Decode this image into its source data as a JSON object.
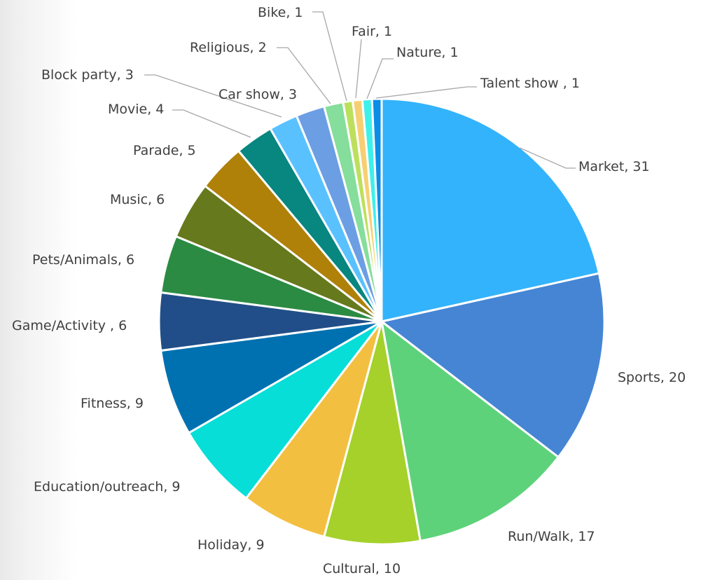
{
  "chart_data": {
    "type": "pie",
    "start_angle_deg": 0,
    "direction": "clockwise",
    "slices": [
      {
        "label": "Market",
        "value": 31,
        "data_label": "Market, 31",
        "color": "#33b3fb"
      },
      {
        "label": "Sports",
        "value": 20,
        "data_label": "Sports, 20",
        "color": "#4585d4"
      },
      {
        "label": "Run/Walk",
        "value": 17,
        "data_label": "Run/Walk, 17",
        "color": "#5ed27a"
      },
      {
        "label": "Cultural",
        "value": 10,
        "data_label": "Cultural, 10",
        "color": "#a5d12a"
      },
      {
        "label": "Holiday",
        "value": 9,
        "data_label": "Holiday, 9",
        "color": "#f3bf40"
      },
      {
        "label": "Education/outreach",
        "value": 9,
        "data_label": "Education/outreach, 9",
        "color": "#07ded8"
      },
      {
        "label": "Fitness",
        "value": 9,
        "data_label": "Fitness, 9",
        "color": "#0071b0"
      },
      {
        "label": "Game/Activity",
        "value": 6,
        "data_label": "Game/Activity , 6",
        "color": "#214e88"
      },
      {
        "label": "Pets/Animals",
        "value": 6,
        "data_label": "Pets/Animals, 6",
        "color": "#2b8b43"
      },
      {
        "label": "Music",
        "value": 6,
        "data_label": "Music, 6",
        "color": "#66791c"
      },
      {
        "label": "Parade",
        "value": 5,
        "data_label": "Parade, 5",
        "color": "#b08109"
      },
      {
        "label": "Movie",
        "value": 4,
        "data_label": "Movie, 4",
        "color": "#088680"
      },
      {
        "label": "Car show",
        "value": 3,
        "data_label": "Car show, 3",
        "color": "#5ac1ff"
      },
      {
        "label": "Block party",
        "value": 3,
        "data_label": "Block party, 3",
        "color": "#6c9ee4"
      },
      {
        "label": "Religious",
        "value": 2,
        "data_label": "Religious, 2",
        "color": "#85de9b"
      },
      {
        "label": "Bike",
        "value": 1,
        "data_label": "Bike, 1",
        "color": "#bce05c"
      },
      {
        "label": "Fair",
        "value": 1,
        "data_label": "Fair, 1",
        "color": "#f7cf72"
      },
      {
        "label": "Nature",
        "value": 1,
        "data_label": "Nature, 1",
        "color": "#3ff0ea"
      },
      {
        "label": "Talent show",
        "value": 1,
        "data_label": "Talent show , 1",
        "color": "#0b8de6"
      }
    ]
  }
}
